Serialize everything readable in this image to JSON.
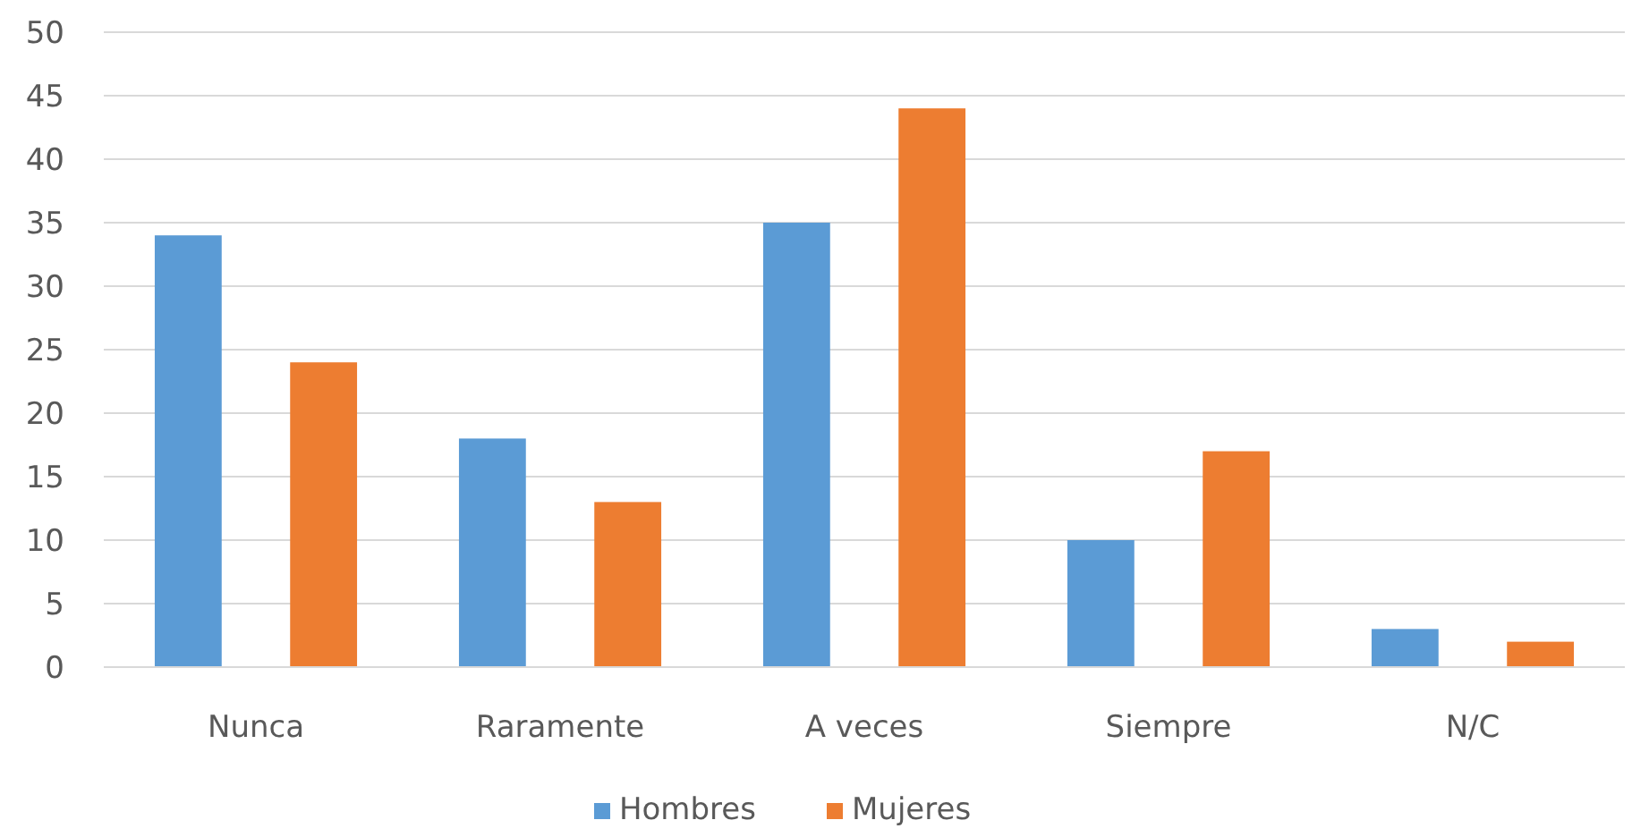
{
  "chart_data": {
    "type": "bar",
    "categories": [
      "Nunca",
      "Raramente",
      "A veces",
      "Siempre",
      "N/C"
    ],
    "series": [
      {
        "name": "Hombres",
        "color": "#5b9bd5",
        "values": [
          34,
          18,
          35,
          10,
          3
        ]
      },
      {
        "name": "Mujeres",
        "color": "#ed7d31",
        "values": [
          24,
          13,
          44,
          17,
          2
        ]
      }
    ],
    "ylim": [
      0,
      50
    ],
    "yticks": [
      0,
      5,
      10,
      15,
      20,
      25,
      30,
      35,
      40,
      45,
      50
    ],
    "grid": "y",
    "legend": "bottom"
  }
}
